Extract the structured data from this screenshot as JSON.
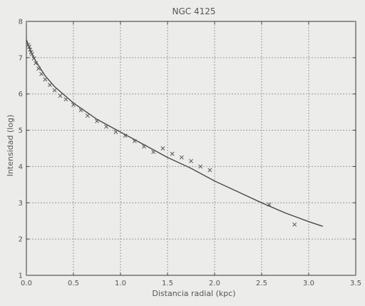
{
  "chart_data": {
    "type": "scatter",
    "title": "NGC 4125",
    "xlabel": "Distancia radial (kpc)",
    "ylabel": "Intensidad (log)",
    "xlim": [
      0.0,
      3.5
    ],
    "ylim": [
      1,
      8
    ],
    "x_ticks": [
      "0.0",
      "0.5",
      "1.0",
      "1.5",
      "2.0",
      "2.5",
      "3.0",
      "3.5"
    ],
    "y_ticks": [
      "1",
      "2",
      "3",
      "4",
      "5",
      "6",
      "7",
      "8"
    ],
    "grid": true,
    "series": [
      {
        "marker": "x",
        "color": "#5a5a5a",
        "x": [
          0.02,
          0.03,
          0.04,
          0.05,
          0.06,
          0.08,
          0.1,
          0.13,
          0.16,
          0.2,
          0.25,
          0.3,
          0.36,
          0.42,
          0.5,
          0.58,
          0.65,
          0.75,
          0.85,
          0.95,
          1.05,
          1.15,
          1.25,
          1.35,
          1.45,
          1.55,
          1.65,
          1.75,
          1.85,
          1.95,
          2.58,
          2.85
        ],
        "y": [
          7.35,
          7.3,
          7.22,
          7.15,
          7.1,
          6.98,
          6.85,
          6.7,
          6.55,
          6.4,
          6.25,
          6.1,
          5.95,
          5.85,
          5.7,
          5.55,
          5.4,
          5.25,
          5.1,
          4.95,
          4.85,
          4.7,
          4.55,
          4.4,
          4.5,
          4.35,
          4.25,
          4.15,
          4.0,
          3.9,
          2.95,
          2.4
        ]
      },
      {
        "type": "line",
        "color": "#4a4a4a",
        "x": [
          0.0,
          0.05,
          0.1,
          0.2,
          0.3,
          0.5,
          0.75,
          1.0,
          1.25,
          1.5,
          1.75,
          2.0,
          2.25,
          2.5,
          2.75,
          3.0,
          3.15
        ],
        "y": [
          7.5,
          7.15,
          6.9,
          6.5,
          6.2,
          5.75,
          5.3,
          4.95,
          4.6,
          4.25,
          3.95,
          3.6,
          3.3,
          3.0,
          2.72,
          2.48,
          2.35
        ]
      }
    ]
  }
}
